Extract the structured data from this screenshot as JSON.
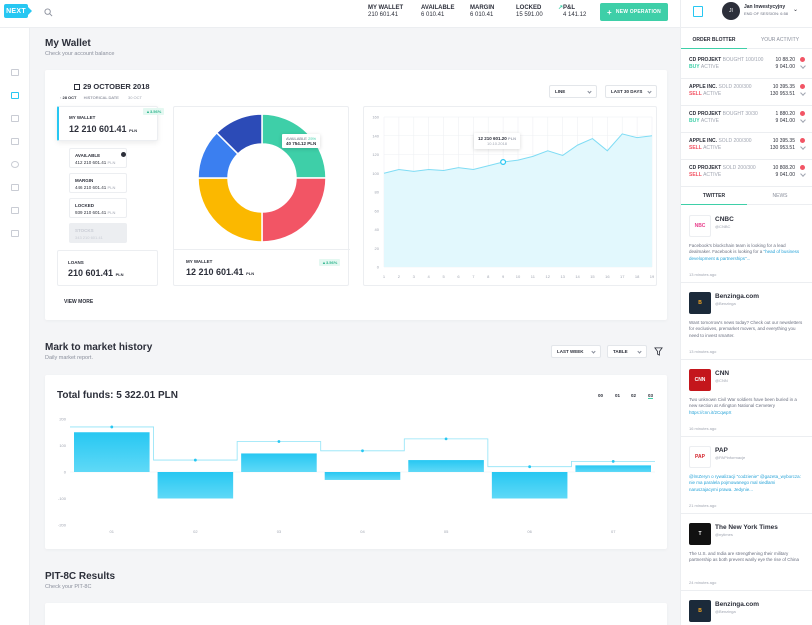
{
  "brand": {
    "logo": "NEXT",
    "accent": "#27c7f2",
    "green": "#3ecfa8",
    "red": "#f25565"
  },
  "header": {
    "stats": [
      {
        "label": "MY WALLET",
        "value": "210 601.41"
      },
      {
        "label": "AVAILABLE",
        "value": "6 010.41"
      },
      {
        "label": "MARGIN",
        "value": "6 010.41"
      },
      {
        "label": "LOCKED",
        "value": "15 591.00"
      },
      {
        "label": "P&L",
        "value": "4 141.12"
      }
    ],
    "new_operation": "NEW OPERATION",
    "user": {
      "initial": "JI",
      "name": "Jan Inwestycyjny",
      "session": "END OF SESSION: 6:58"
    }
  },
  "wallet": {
    "title": "My Wallet",
    "subtitle": "Check your account balance",
    "date": "29 OCTOBER 2018",
    "date_nav": {
      "prev": "28 OCT",
      "historical": "HISTORICAL DATE",
      "next": "30 OCT"
    },
    "my_wallet": {
      "label": "MY WALLET",
      "value": "12 210 601.41",
      "unit": "PLN",
      "badge": "▲3.56%"
    },
    "available": {
      "label": "AVAILABLE",
      "value": "412 210 601.41",
      "unit": "PLN"
    },
    "margin": {
      "label": "MARGIN",
      "value": "446 210 601.41",
      "unit": "PLN"
    },
    "locked": {
      "label": "LOCKED",
      "value": "939 210 601.41",
      "unit": "PLN"
    },
    "stocks": {
      "label": "STOCKS",
      "value": "343 210 601.41"
    },
    "loans": {
      "label": "LOANS",
      "value": "210 601.41",
      "unit": "PLN"
    },
    "view_more": "VIEW MORE",
    "donut": {
      "tooltip_label": "AVAILABLE",
      "tooltip_pct": "25%",
      "tooltip_value": "40 754.12 PLN",
      "footer_label": "MY WALLET",
      "footer_value": "12 210 601.41",
      "footer_unit": "PLN",
      "footer_badge": "▲3.56%"
    },
    "line_dropdown": "LINE",
    "period_dropdown": "LAST 30 DAYS",
    "line_tooltip": {
      "value": "12 210 601.20",
      "unit": "PLN",
      "date": "10.10.2018"
    }
  },
  "mtm": {
    "title": "Mark to market history",
    "subtitle": "Daily market report.",
    "week_dropdown": "LAST WEEK",
    "view_dropdown": "TABLE",
    "total": "Total funds: 5 322.01 PLN",
    "years": [
      "00",
      "01",
      "02",
      "03"
    ]
  },
  "pit": {
    "title": "PIT-8C Results",
    "subtitle": "Check your PIT-8C"
  },
  "sidebar": {
    "tabs": [
      "ORDER BLOTTER",
      "YOUR ACTIVITY"
    ],
    "orders": [
      {
        "name": "CD PROJEKT",
        "sub": "BOUGHT 100/100",
        "side": "BUY",
        "status": "ACTIVE",
        "price": "10 88.20",
        "value": "9 041.00"
      },
      {
        "name": "APPLE INC.",
        "sub": "SOLD 200/300",
        "side": "SELL",
        "status": "ACTIVE",
        "price": "10 395.35",
        "value": "130 953.51"
      },
      {
        "name": "CD PROJEKT",
        "sub": "BOUGHT 30/30",
        "side": "BUY",
        "status": "ACTIVE",
        "price": "1 880.20",
        "value": "9 041.00"
      },
      {
        "name": "APPLE INC.",
        "sub": "SOLD 200/300",
        "side": "SELL",
        "status": "ACTIVE",
        "price": "10 395.35",
        "value": "130 953.51"
      },
      {
        "name": "CD PROJEKT",
        "sub": "SOLD 200/300",
        "side": "SELL",
        "status": "ACTIVE",
        "price": "10 808.20",
        "value": "9 041.00"
      }
    ],
    "feed_tabs": [
      "TWITTER",
      "NEWS"
    ],
    "tweets": [
      {
        "name": "CNBC",
        "handle": "@CNBC",
        "text": "Facebook's blockchain team is looking for a lead dealmaker. Facebook is looking for a ",
        "link": "\"head of business development & partnerships\"...",
        "time": "13 minutes ago"
      },
      {
        "name": "Benzinga.com",
        "handle": "@Benzinga",
        "text": "Want tomorrow's news today? Check out our newsletters for exclusives, premarket movers, and everything you need to invest smarter.",
        "link": "",
        "time": "13 minutes ago"
      },
      {
        "name": "CNN",
        "handle": "@CNN",
        "text": "Two unknown Civil War soldiers have been buried in a new section at Arlington National Cemetery ",
        "link": "https://cnn.it/2CqwpX",
        "time": "16 minutes ago"
      },
      {
        "name": "PAP",
        "handle": "@PAPinformacje",
        "text": "",
        "link": "@lmZeryn o rywalizacji \"codzienie\" @gazeta_wyborcza: nie ma paralela pojmowanego mal siedlami naruszajacymi prawa. Jedynie...",
        "time": "21 minutes ago"
      },
      {
        "name": "The New York Times",
        "handle": "@nytimes",
        "text": "The U.S. and India are strengthening their military partnership as both prevent warily eye the rise of China",
        "link": "",
        "time": "24 minutes ago"
      },
      {
        "name": "Benzinga.com",
        "handle": "@Benzinga",
        "text": "",
        "link": "",
        "time": ""
      }
    ]
  },
  "chart_data": [
    {
      "type": "pie",
      "categories": [
        "Available",
        "Margin",
        "Locked",
        "Stocks",
        "Loans"
      ],
      "values": [
        25,
        25,
        25,
        12.5,
        12.5
      ],
      "title": "",
      "colors": [
        "#3ecfa8",
        "#f25565",
        "#fbb800",
        "#3b7ff0",
        "#2c4bb7"
      ]
    },
    {
      "type": "area",
      "x": [
        1,
        2,
        3,
        4,
        5,
        6,
        7,
        8,
        9,
        10,
        11,
        12,
        13,
        14,
        15,
        16,
        17,
        18,
        19
      ],
      "values": [
        100,
        104,
        102,
        104,
        103,
        106,
        104,
        108,
        112,
        114,
        118,
        124,
        119,
        130,
        137,
        124,
        142,
        138,
        140
      ],
      "ylim": [
        0,
        160
      ],
      "yticks": [
        0,
        20,
        40,
        60,
        80,
        100,
        120,
        140,
        160
      ],
      "xticks": [
        1,
        2,
        3,
        4,
        5,
        6,
        7,
        8,
        9,
        10,
        11,
        12,
        13,
        14,
        15,
        16,
        17,
        18,
        19
      ],
      "title": "",
      "xlabel": "",
      "ylabel": ""
    },
    {
      "type": "bar",
      "categories": [
        "01",
        "02",
        "03",
        "04",
        "05",
        "06",
        "07"
      ],
      "values": [
        150,
        -100,
        70,
        -30,
        45,
        -100,
        25
      ],
      "line": [
        170,
        45,
        115,
        80,
        125,
        20,
        40
      ],
      "ylim": [
        -200,
        200
      ],
      "yticks": [
        200,
        100,
        0,
        -100,
        -200
      ],
      "title": "Total funds: 5 322.01 PLN",
      "xlabel": "",
      "ylabel": ""
    }
  ]
}
